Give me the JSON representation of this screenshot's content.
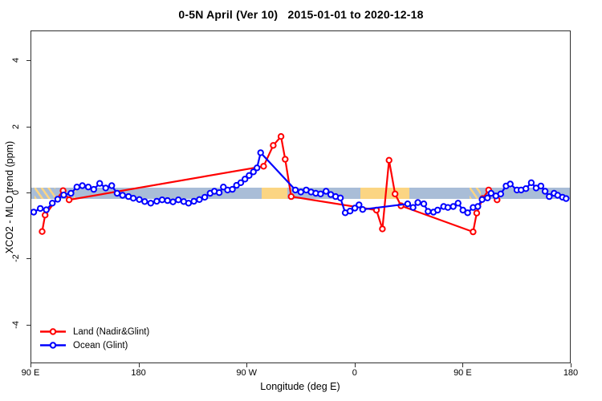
{
  "chart_data": {
    "type": "line",
    "title": "0-5N April (Ver 10)   2015-01-01 to 2020-12-18",
    "xlabel": "Longitude (deg E)",
    "ylabel": "XCO2 - MLO trend (ppm)",
    "grid": false,
    "legend_position": "bottom-left",
    "xlim_deg_unwrapped": [
      90,
      540
    ],
    "ylim": [
      -5.05,
      4.9
    ],
    "x_ticks": [
      {
        "pos": 90,
        "label": "90 E"
      },
      {
        "pos": 180,
        "label": "180"
      },
      {
        "pos": 270,
        "label": "90 W"
      },
      {
        "pos": 360,
        "label": "0"
      },
      {
        "pos": 450,
        "label": "90 E"
      },
      {
        "pos": 540,
        "label": "180"
      }
    ],
    "y_ticks": [
      {
        "value": 4,
        "label": "4"
      },
      {
        "value": 2,
        "label": "2"
      },
      {
        "value": 0,
        "label": "0"
      },
      {
        "value": -2,
        "label": "-2"
      },
      {
        "value": -4,
        "label": "-4"
      }
    ],
    "band": {
      "description": "reference band around zero",
      "color_base": "#A9BDD7",
      "color_highlight": "#FBD583",
      "half_width_ppm": 0.16,
      "solid_segments_deg": [
        [
          282,
          303.5
        ],
        [
          364,
          405
        ]
      ],
      "hatched_segments_deg": [
        [
          92.5,
          110
        ],
        [
          125.5,
          127.5
        ],
        [
          455,
          464.5
        ]
      ]
    },
    "series": [
      {
        "name": "Land (Nadir&Glint)",
        "color": "#FF0000",
        "marker": "open-circle",
        "points": [
          [
            99,
            -1.16
          ],
          [
            101.5,
            -0.66
          ],
          [
            116.5,
            0.08
          ],
          [
            121.5,
            -0.2
          ],
          [
            283.5,
            0.82
          ],
          [
            291.5,
            1.45
          ],
          [
            298,
            1.72
          ],
          [
            301.5,
            1.03
          ],
          [
            306.5,
            -0.1
          ],
          [
            377.5,
            -0.51
          ],
          [
            382.5,
            -1.08
          ],
          [
            388,
            1.0
          ],
          [
            393,
            -0.02
          ],
          [
            398,
            -0.38
          ],
          [
            458,
            -1.17
          ],
          [
            461,
            -0.6
          ],
          [
            466,
            -0.16
          ],
          [
            471,
            0.1
          ],
          [
            478,
            -0.2
          ]
        ]
      },
      {
        "name": "Ocean (Glint)",
        "color": "#0000FF",
        "marker": "open-circle",
        "points": [
          [
            92,
            -0.57
          ],
          [
            97.5,
            -0.46
          ],
          [
            102.5,
            -0.5
          ],
          [
            107.5,
            -0.3
          ],
          [
            112,
            -0.18
          ],
          [
            117,
            -0.05
          ],
          [
            123,
            0.0
          ],
          [
            128,
            0.19
          ],
          [
            132.5,
            0.23
          ],
          [
            137.5,
            0.19
          ],
          [
            142,
            0.12
          ],
          [
            147,
            0.3
          ],
          [
            152,
            0.16
          ],
          [
            157,
            0.23
          ],
          [
            161.5,
            0.0
          ],
          [
            166,
            -0.06
          ],
          [
            171,
            -0.1
          ],
          [
            175,
            -0.15
          ],
          [
            180,
            -0.19
          ],
          [
            184.5,
            -0.25
          ],
          [
            189.5,
            -0.3
          ],
          [
            194.5,
            -0.24
          ],
          [
            199,
            -0.2
          ],
          [
            203.5,
            -0.22
          ],
          [
            208,
            -0.26
          ],
          [
            212.5,
            -0.2
          ],
          [
            217,
            -0.25
          ],
          [
            221,
            -0.3
          ],
          [
            225.5,
            -0.24
          ],
          [
            230,
            -0.19
          ],
          [
            234.5,
            -0.12
          ],
          [
            239,
            0.0
          ],
          [
            242.5,
            0.06
          ],
          [
            246.5,
            0.02
          ],
          [
            250,
            0.19
          ],
          [
            253.5,
            0.1
          ],
          [
            257.5,
            0.12
          ],
          [
            261,
            0.24
          ],
          [
            264.5,
            0.32
          ],
          [
            268,
            0.43
          ],
          [
            271.5,
            0.54
          ],
          [
            275,
            0.65
          ],
          [
            278,
            0.77
          ],
          [
            281,
            1.23
          ],
          [
            310,
            0.1
          ],
          [
            314.5,
            0.04
          ],
          [
            319,
            0.1
          ],
          [
            323,
            0.04
          ],
          [
            327,
            0.0
          ],
          [
            331,
            -0.02
          ],
          [
            335.5,
            0.06
          ],
          [
            339.5,
            -0.04
          ],
          [
            343.5,
            -0.1
          ],
          [
            347.5,
            -0.14
          ],
          [
            351.5,
            -0.59
          ],
          [
            355.5,
            -0.54
          ],
          [
            359.5,
            -0.45
          ],
          [
            363,
            -0.35
          ],
          [
            366,
            -0.49
          ],
          [
            403.5,
            -0.32
          ],
          [
            408,
            -0.43
          ],
          [
            412,
            -0.28
          ],
          [
            417,
            -0.32
          ],
          [
            420.5,
            -0.55
          ],
          [
            425,
            -0.57
          ],
          [
            428.5,
            -0.51
          ],
          [
            433.5,
            -0.4
          ],
          [
            437,
            -0.43
          ],
          [
            441.5,
            -0.4
          ],
          [
            445.5,
            -0.3
          ],
          [
            449.5,
            -0.51
          ],
          [
            453.5,
            -0.59
          ],
          [
            458,
            -0.43
          ],
          [
            462,
            -0.4
          ],
          [
            465.5,
            -0.19
          ],
          [
            470,
            -0.14
          ],
          [
            473,
            0.0
          ],
          [
            477,
            -0.08
          ],
          [
            481,
            -0.02
          ],
          [
            485.5,
            0.22
          ],
          [
            489,
            0.28
          ],
          [
            494.5,
            0.1
          ],
          [
            498,
            0.1
          ],
          [
            502,
            0.14
          ],
          [
            506.5,
            0.32
          ],
          [
            510.5,
            0.16
          ],
          [
            514.5,
            0.22
          ],
          [
            518,
            0.06
          ],
          [
            521.5,
            -0.1
          ],
          [
            525.5,
            0.0
          ],
          [
            528.5,
            -0.06
          ],
          [
            532.5,
            -0.12
          ],
          [
            535.5,
            -0.16
          ]
        ]
      }
    ]
  }
}
